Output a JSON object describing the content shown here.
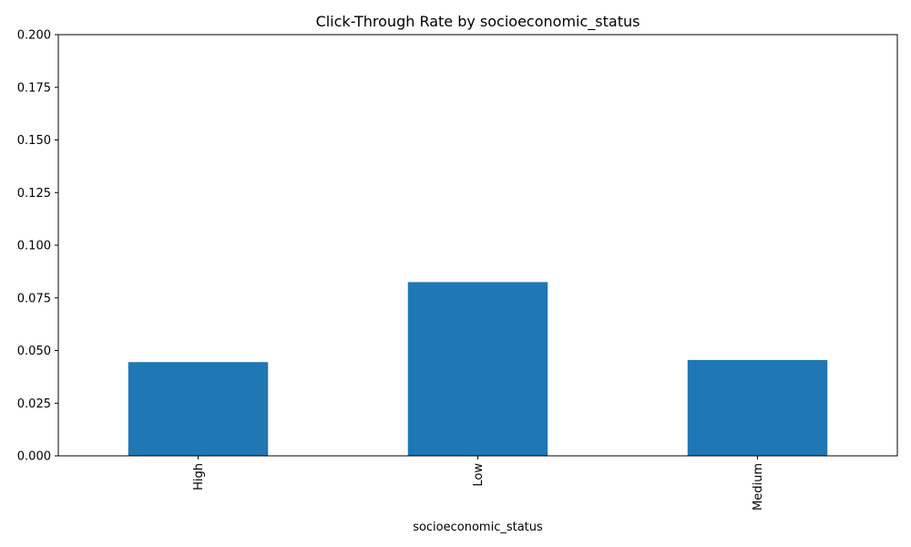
{
  "chart_data": {
    "type": "bar",
    "title": "Click-Through Rate by socioeconomic_status",
    "xlabel": "socioeconomic_status",
    "ylabel": "",
    "categories": [
      "High",
      "Low",
      "Medium"
    ],
    "values": [
      0.0445,
      0.0825,
      0.0455
    ],
    "ylim": [
      0,
      0.2
    ],
    "yticks": [
      "0.000",
      "0.025",
      "0.050",
      "0.075",
      "0.100",
      "0.125",
      "0.150",
      "0.175",
      "0.200"
    ],
    "grid": false,
    "legend": "none",
    "bar_color": "#1f77b4"
  }
}
